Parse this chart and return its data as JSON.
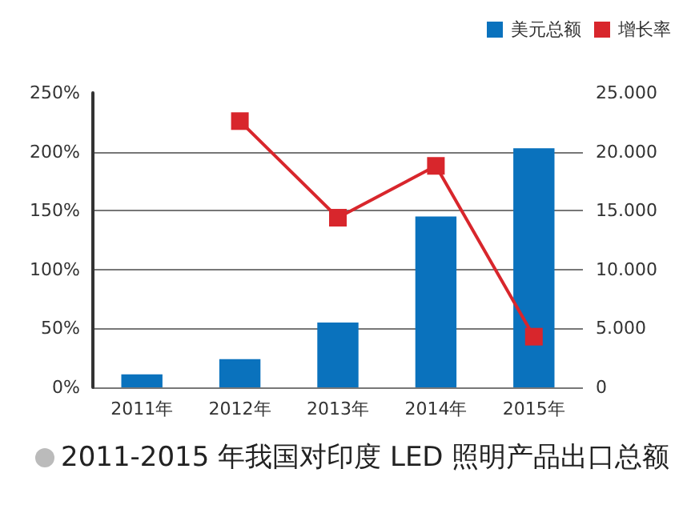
{
  "chart_data": {
    "type": "bar",
    "title": "2011-2015 年我国对印度 LED 照明产品出口总额",
    "categories": [
      "2011年",
      "2012年",
      "2013年",
      "2014年",
      "2015年"
    ],
    "series": [
      {
        "name": "美元总额",
        "axis": "y2",
        "color": "#0a72bd",
        "values": [
          1100,
          2400,
          5500,
          14500,
          20300
        ]
      },
      {
        "name": "增长率",
        "type": "line",
        "axis": "y",
        "color": "#d8262c",
        "marker": "square",
        "values": [
          null,
          226,
          144,
          188,
          43
        ]
      }
    ],
    "ylim": [
      0,
      250
    ],
    "yticks": [
      {
        "value": 0,
        "label": "0%"
      },
      {
        "value": 50,
        "label": "50%"
      },
      {
        "value": 100,
        "label": "100%"
      },
      {
        "value": 150,
        "label": "150%"
      },
      {
        "value": 200,
        "label": "200%"
      },
      {
        "value": 250,
        "label": "250%"
      }
    ],
    "y2lim": [
      0,
      25000
    ],
    "y2ticks": [
      {
        "value": 0,
        "label": "0"
      },
      {
        "value": 5000,
        "label": "5.000"
      },
      {
        "value": 10000,
        "label": "10.000"
      },
      {
        "value": 15000,
        "label": "15.000"
      },
      {
        "value": 20000,
        "label": "20.000"
      },
      {
        "value": 25000,
        "label": "25.000"
      }
    ],
    "grid": "y",
    "legend": "top right"
  }
}
